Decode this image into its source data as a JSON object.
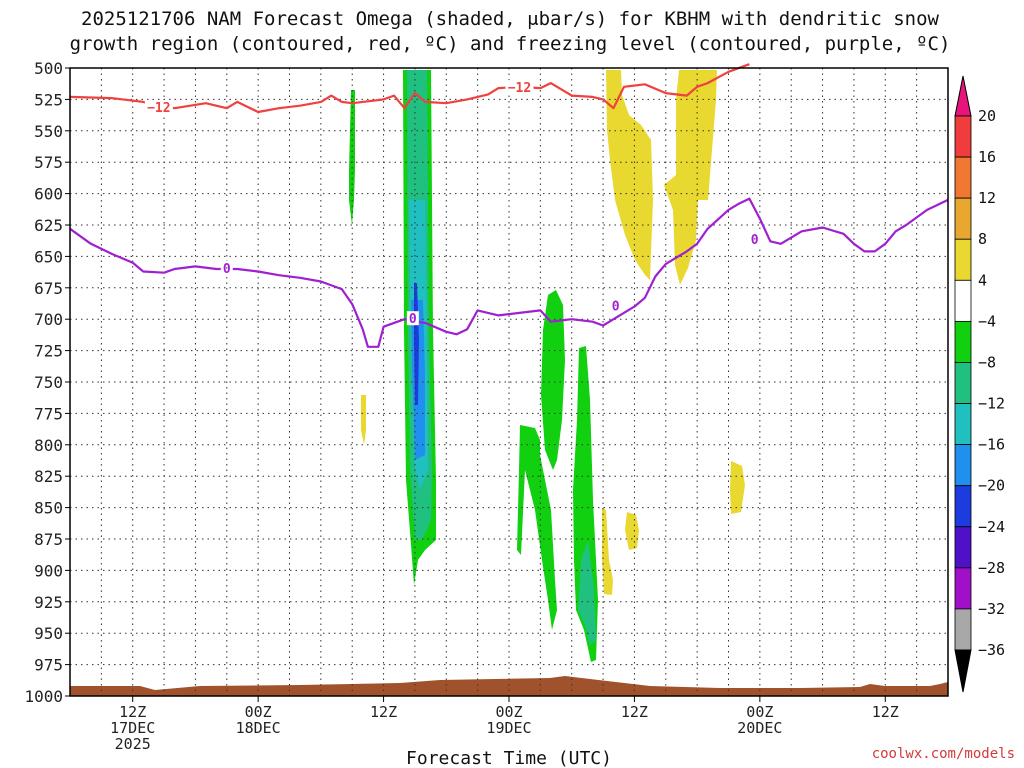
{
  "title_line1": "2025121706 NAM Forecast Omega (shaded, μbar/s) for KBHM with dendritic snow",
  "title_line2": "growth region (contoured, red, ºC) and freezing level (contoured, purple, ºC)",
  "credit": "coolwx.com/models",
  "chart_data": {
    "type": "heatmap",
    "xlabel": "Forecast Time (UTC)",
    "ylabel": "",
    "x_unit": "forecast hour",
    "xlim": [
      0,
      84
    ],
    "ylim": [
      500,
      1000
    ],
    "y_inverted": true,
    "y_ticks": [
      500,
      525,
      550,
      575,
      600,
      625,
      650,
      675,
      700,
      725,
      750,
      775,
      800,
      825,
      850,
      875,
      900,
      925,
      950,
      975,
      1000
    ],
    "x_ticks": [
      {
        "hour": 6,
        "lines": [
          "12Z",
          "17DEC",
          "2025"
        ]
      },
      {
        "hour": 18,
        "lines": [
          "00Z",
          "18DEC"
        ]
      },
      {
        "hour": 30,
        "lines": [
          "12Z"
        ]
      },
      {
        "hour": 42,
        "lines": [
          "00Z",
          "19DEC"
        ]
      },
      {
        "hour": 54,
        "lines": [
          "12Z"
        ]
      },
      {
        "hour": 66,
        "lines": [
          "00Z",
          "20DEC"
        ]
      },
      {
        "hour": 78,
        "lines": [
          "12Z"
        ]
      }
    ],
    "grid": true,
    "colorbar": {
      "labels": [
        "20",
        "16",
        "12",
        "8",
        "4",
        "−4",
        "−8",
        "−12",
        "−16",
        "−20",
        "−24",
        "−28",
        "−32",
        "−36"
      ],
      "colors": [
        "#ff2b7a",
        "#f03c3c",
        "#f07830",
        "#e8a830",
        "#e8d830",
        "#ffffff",
        "#10d010",
        "#20c080",
        "#20c0c0",
        "#2090f0",
        "#1c3ce0",
        "#5010c8",
        "#a010c8",
        "#a8a8a8"
      ],
      "top_arrow": "#e8147c",
      "bottom_arrow": "#000000"
    },
    "series": [
      {
        "name": "-12",
        "color": "#f04040",
        "points": [
          [
            0,
            523
          ],
          [
            4,
            524
          ],
          [
            7,
            527
          ],
          [
            8,
            530
          ],
          [
            10,
            532
          ],
          [
            13,
            528
          ],
          [
            15,
            532
          ],
          [
            16,
            527
          ],
          [
            18,
            535
          ],
          [
            20,
            532
          ],
          [
            22,
            530
          ],
          [
            24,
            527
          ],
          [
            25,
            522
          ],
          [
            26,
            527
          ],
          [
            27,
            528
          ],
          [
            30,
            525
          ],
          [
            31,
            522
          ],
          [
            32,
            532
          ],
          [
            33,
            520
          ],
          [
            34,
            527
          ],
          [
            36,
            528
          ],
          [
            38,
            525
          ],
          [
            40,
            521
          ],
          [
            41,
            516
          ],
          [
            43,
            515
          ],
          [
            45,
            516
          ],
          [
            46,
            512
          ],
          [
            48,
            522
          ],
          [
            50,
            523
          ],
          [
            51,
            525
          ],
          [
            52,
            532
          ],
          [
            53,
            515
          ],
          [
            55,
            513
          ],
          [
            57,
            520
          ],
          [
            58,
            521
          ],
          [
            59,
            522
          ],
          [
            60,
            515
          ],
          [
            61,
            512
          ],
          [
            63,
            503
          ],
          [
            65,
            497
          ]
        ],
        "labels": [
          {
            "x": 8.5,
            "y": 532,
            "text": "−12"
          },
          {
            "x": 43,
            "y": 516,
            "text": "−12"
          }
        ]
      },
      {
        "name": "0",
        "color": "#a020d0",
        "points": [
          [
            0,
            628
          ],
          [
            2,
            640
          ],
          [
            4,
            648
          ],
          [
            6,
            655
          ],
          [
            7,
            662
          ],
          [
            9,
            663
          ],
          [
            10,
            660
          ],
          [
            12,
            658
          ],
          [
            14,
            660
          ],
          [
            16,
            660
          ],
          [
            18,
            662
          ],
          [
            20,
            665
          ],
          [
            22,
            667
          ],
          [
            24,
            670
          ],
          [
            26,
            676
          ],
          [
            27,
            688
          ],
          [
            28,
            708
          ],
          [
            28.5,
            722
          ],
          [
            29.5,
            722
          ],
          [
            30,
            706
          ],
          [
            32,
            700
          ],
          [
            34,
            703
          ],
          [
            36,
            710
          ],
          [
            37,
            712
          ],
          [
            38,
            708
          ],
          [
            39,
            693
          ],
          [
            41,
            697
          ],
          [
            43,
            695
          ],
          [
            45,
            693
          ],
          [
            46,
            702
          ],
          [
            48,
            700
          ],
          [
            50,
            702
          ],
          [
            51,
            705
          ],
          [
            52,
            700
          ],
          [
            54,
            690
          ],
          [
            55,
            683
          ],
          [
            56,
            666
          ],
          [
            57,
            656
          ],
          [
            59,
            646
          ],
          [
            60,
            640
          ],
          [
            61,
            628
          ],
          [
            63,
            613
          ],
          [
            64,
            608
          ],
          [
            65,
            604
          ],
          [
            66,
            620
          ],
          [
            67,
            638
          ],
          [
            68,
            640
          ],
          [
            70,
            630
          ],
          [
            72,
            627
          ],
          [
            74,
            632
          ],
          [
            75,
            640
          ],
          [
            76,
            646
          ],
          [
            77,
            646
          ],
          [
            78,
            640
          ],
          [
            79,
            630
          ],
          [
            80,
            625
          ],
          [
            82,
            613
          ],
          [
            84,
            605
          ]
        ],
        "labels": [
          {
            "x": 15,
            "y": 660,
            "text": "0"
          },
          {
            "x": 32.8,
            "y": 700,
            "text": "0"
          },
          {
            "x": 52.2,
            "y": 690,
            "text": "0"
          },
          {
            "x": 65.5,
            "y": 637,
            "text": "0"
          }
        ]
      }
    ]
  }
}
